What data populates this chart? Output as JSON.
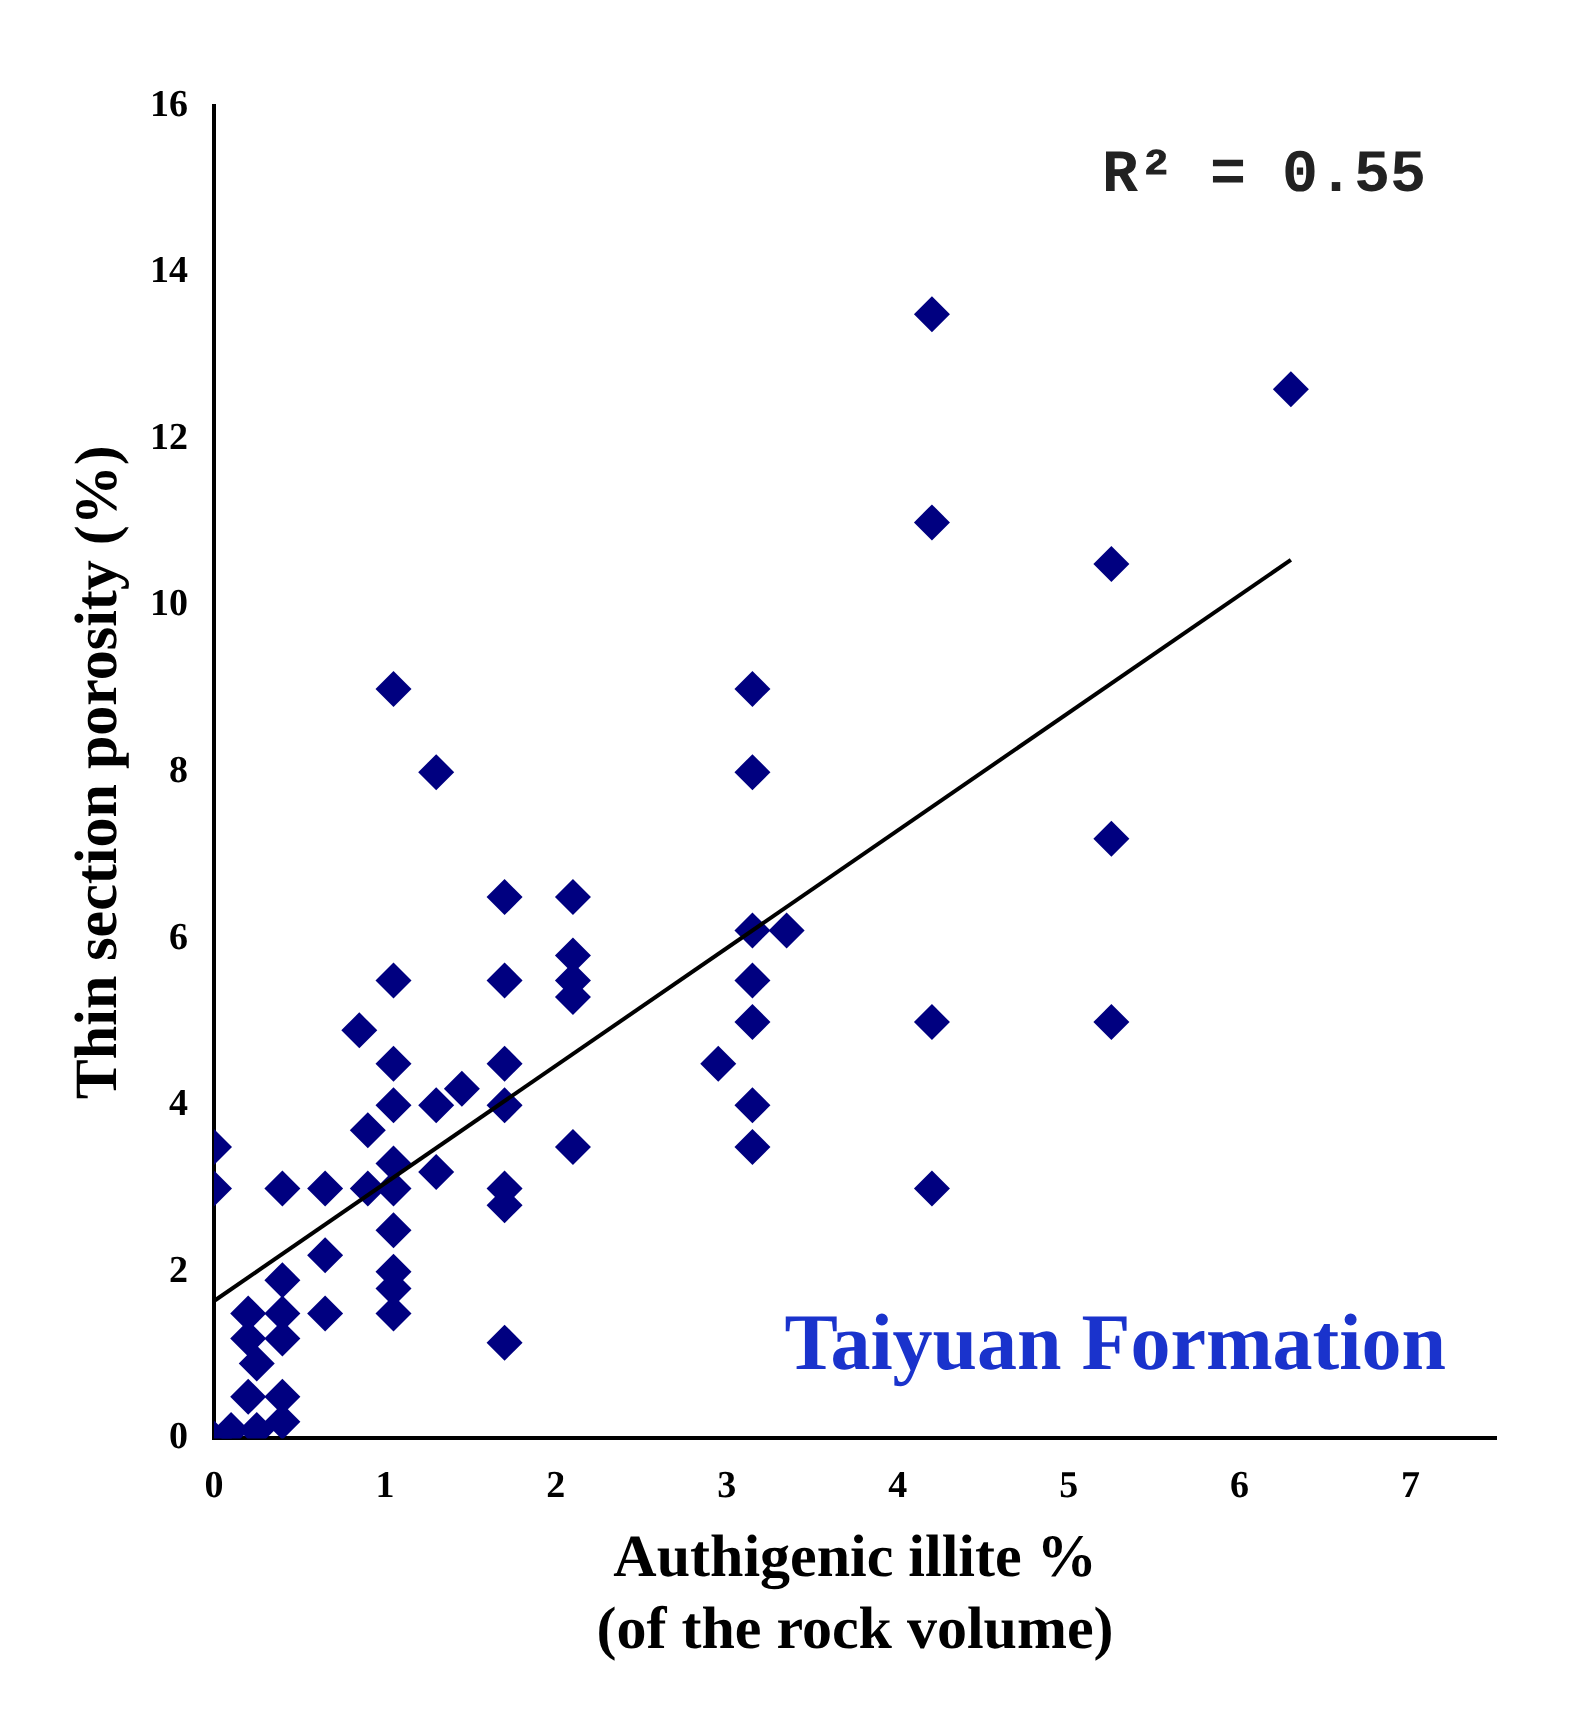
{
  "chart_data": {
    "type": "scatter",
    "xlabel": "Authigenic illite %\n(of the rock volume)",
    "ylabel": "Thin section porosity (%)",
    "annotations": [
      "R² = 0.55",
      "Taiyuan Formation"
    ],
    "xlim": [
      0,
      7.5
    ],
    "xticks": [
      0,
      1,
      2,
      3,
      4,
      5,
      6,
      7
    ],
    "ylim": [
      0,
      16
    ],
    "yticks": [
      0,
      2,
      4,
      6,
      8,
      10,
      12,
      14,
      16
    ],
    "grid": false,
    "legend": false,
    "marker": "diamond",
    "series": [
      {
        "color": "#000080",
        "x": [
          0,
          0,
          0,
          0.1,
          0.2,
          0.2,
          0.25,
          0.2,
          0.25,
          0.4,
          0.4,
          0.4,
          0.4,
          0.4,
          0.4,
          0.65,
          0.65,
          0.65,
          0.9,
          0.9,
          0.85,
          1.05,
          1.05,
          1.05,
          1.05,
          1.05,
          1.05,
          1.05,
          1.05,
          1.05,
          1.05,
          1.3,
          1.3,
          1.3,
          1.45,
          1.7,
          1.7,
          1.7,
          1.7,
          1.7,
          1.7,
          1.7,
          2.1,
          2.1,
          2.1,
          2.1,
          2.1,
          2.95,
          3.15,
          3.15,
          3.15,
          3.35,
          3.15,
          3.15,
          3.15,
          3.15,
          4.2,
          4.2,
          4.2,
          4.2,
          5.25,
          5.25,
          5.25,
          6.3
        ],
        "values": [
          3.5,
          3.0,
          0,
          0.1,
          1.5,
          1.2,
          0.9,
          0.5,
          0.1,
          1.9,
          1.5,
          1.2,
          0.5,
          0.2,
          3.0,
          3.0,
          2.2,
          1.5,
          3.0,
          3.7,
          4.9,
          9.0,
          5.5,
          4.5,
          4.0,
          3.3,
          3.0,
          2.5,
          2.0,
          1.8,
          1.5,
          8.0,
          4.0,
          3.2,
          4.2,
          6.5,
          5.5,
          4.5,
          4.0,
          3.0,
          2.8,
          1.15,
          6.5,
          5.8,
          5.5,
          5.3,
          3.5,
          4.5,
          9.0,
          8.0,
          6.1,
          6.1,
          5.5,
          5.0,
          4.0,
          3.5,
          13.5,
          11.0,
          5.0,
          3.0,
          10.5,
          7.2,
          5.0,
          12.6
        ]
      },
      {
        "type": "line",
        "color": "#000000",
        "marker": "none",
        "line_style": "solid",
        "x": [
          0,
          6.3
        ],
        "values": [
          1.65,
          10.55
        ]
      }
    ]
  }
}
